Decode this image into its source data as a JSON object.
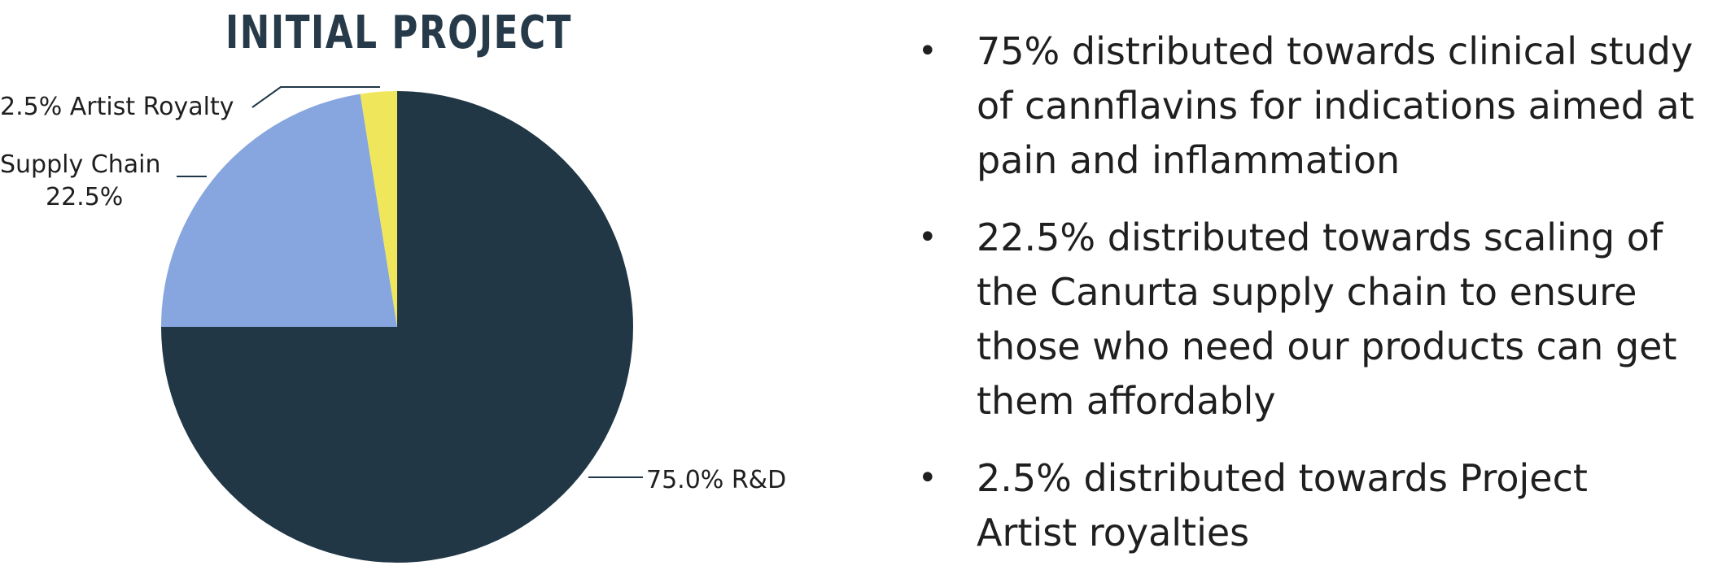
{
  "chart_data": {
    "type": "pie",
    "title": "INITIAL PROJECT",
    "slices": [
      {
        "label": "R&D",
        "value": 75.0,
        "display": "75.0% R&D",
        "color": "#213746"
      },
      {
        "label": "Supply Chain",
        "value": 22.5,
        "display_line1": "Supply Chain",
        "display_line2": "22.5%",
        "color": "#87a6df"
      },
      {
        "label": "Artist Royalty",
        "value": 2.5,
        "display": "2.5% Artist Royalty",
        "color": "#f0e65c"
      }
    ],
    "legend": "none"
  },
  "bullets": [
    {
      "text": "75% distributed towards clinical study of cannflavins for indications aimed at pain and inflammation"
    },
    {
      "text": "22.5% distributed towards scaling of the Canurta supply chain to ensure those who need our products can get them affordably"
    },
    {
      "text": "2.5% distributed towards Project Artist royalties"
    }
  ],
  "bullet_symbol": "•"
}
